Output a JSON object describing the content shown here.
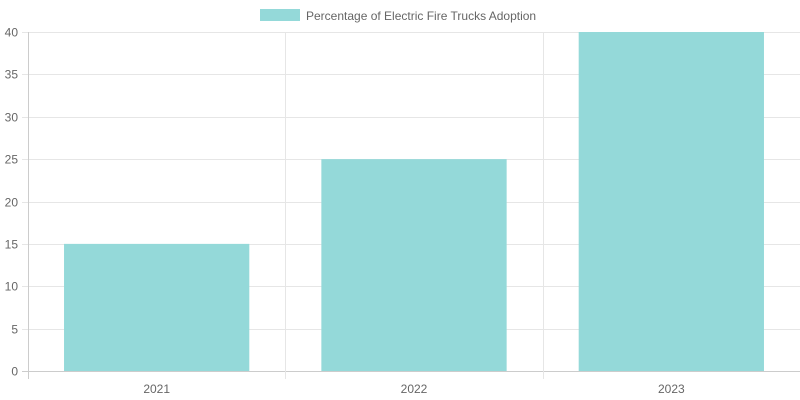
{
  "chart_data": {
    "type": "bar",
    "categories": [
      "2021",
      "2022",
      "2023"
    ],
    "series": [
      {
        "name": "Percentage of Electric Fire Trucks Adoption",
        "values": [
          15,
          25,
          40
        ],
        "color": "#94d9d9"
      }
    ],
    "ylim": [
      0,
      40
    ],
    "yticks": [
      "0",
      "5",
      "10",
      "15",
      "20",
      "25",
      "30",
      "35",
      "40"
    ],
    "grid": true,
    "legend_position": "top"
  }
}
